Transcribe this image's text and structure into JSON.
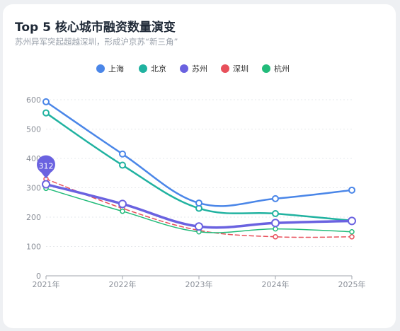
{
  "header": {
    "title": "Top 5 核心城市融资数量演变",
    "subtitle": "苏州异军突起超越深圳，形成沪京苏“新三角”"
  },
  "chart_data": {
    "type": "line",
    "title": "Top 5 核心城市融资数量演变",
    "subtitle": "苏州异军突起超越深圳，形成沪京苏“新三角”",
    "categories": [
      "2021年",
      "2022年",
      "2023年",
      "2024年",
      "2025年"
    ],
    "ylim": [
      0,
      600
    ],
    "yticks": [
      0,
      100,
      200,
      300,
      400,
      500,
      600
    ],
    "grid": true,
    "legend_position": "top",
    "series": [
      {
        "name": "上海",
        "color": "#4a86e8",
        "values": [
          593,
          415,
          248,
          263,
          292
        ],
        "dashed": false,
        "width": 2.5
      },
      {
        "name": "北京",
        "color": "#20b2a0",
        "values": [
          555,
          377,
          230,
          212,
          188
        ],
        "dashed": false,
        "width": 2.5
      },
      {
        "name": "苏州",
        "color": "#6a62e0",
        "values": [
          312,
          245,
          168,
          180,
          187
        ],
        "dashed": false,
        "width": 3.5
      },
      {
        "name": "深圳",
        "color": "#e8505b",
        "values": [
          330,
          230,
          155,
          133,
          133
        ],
        "dashed": true,
        "width": 1.5
      },
      {
        "name": "杭州",
        "color": "#22bb7a",
        "values": [
          298,
          220,
          150,
          160,
          150
        ],
        "dashed": false,
        "width": 1.5
      }
    ],
    "annotation": {
      "series": "苏州",
      "category": "2021年",
      "label": "312"
    }
  }
}
